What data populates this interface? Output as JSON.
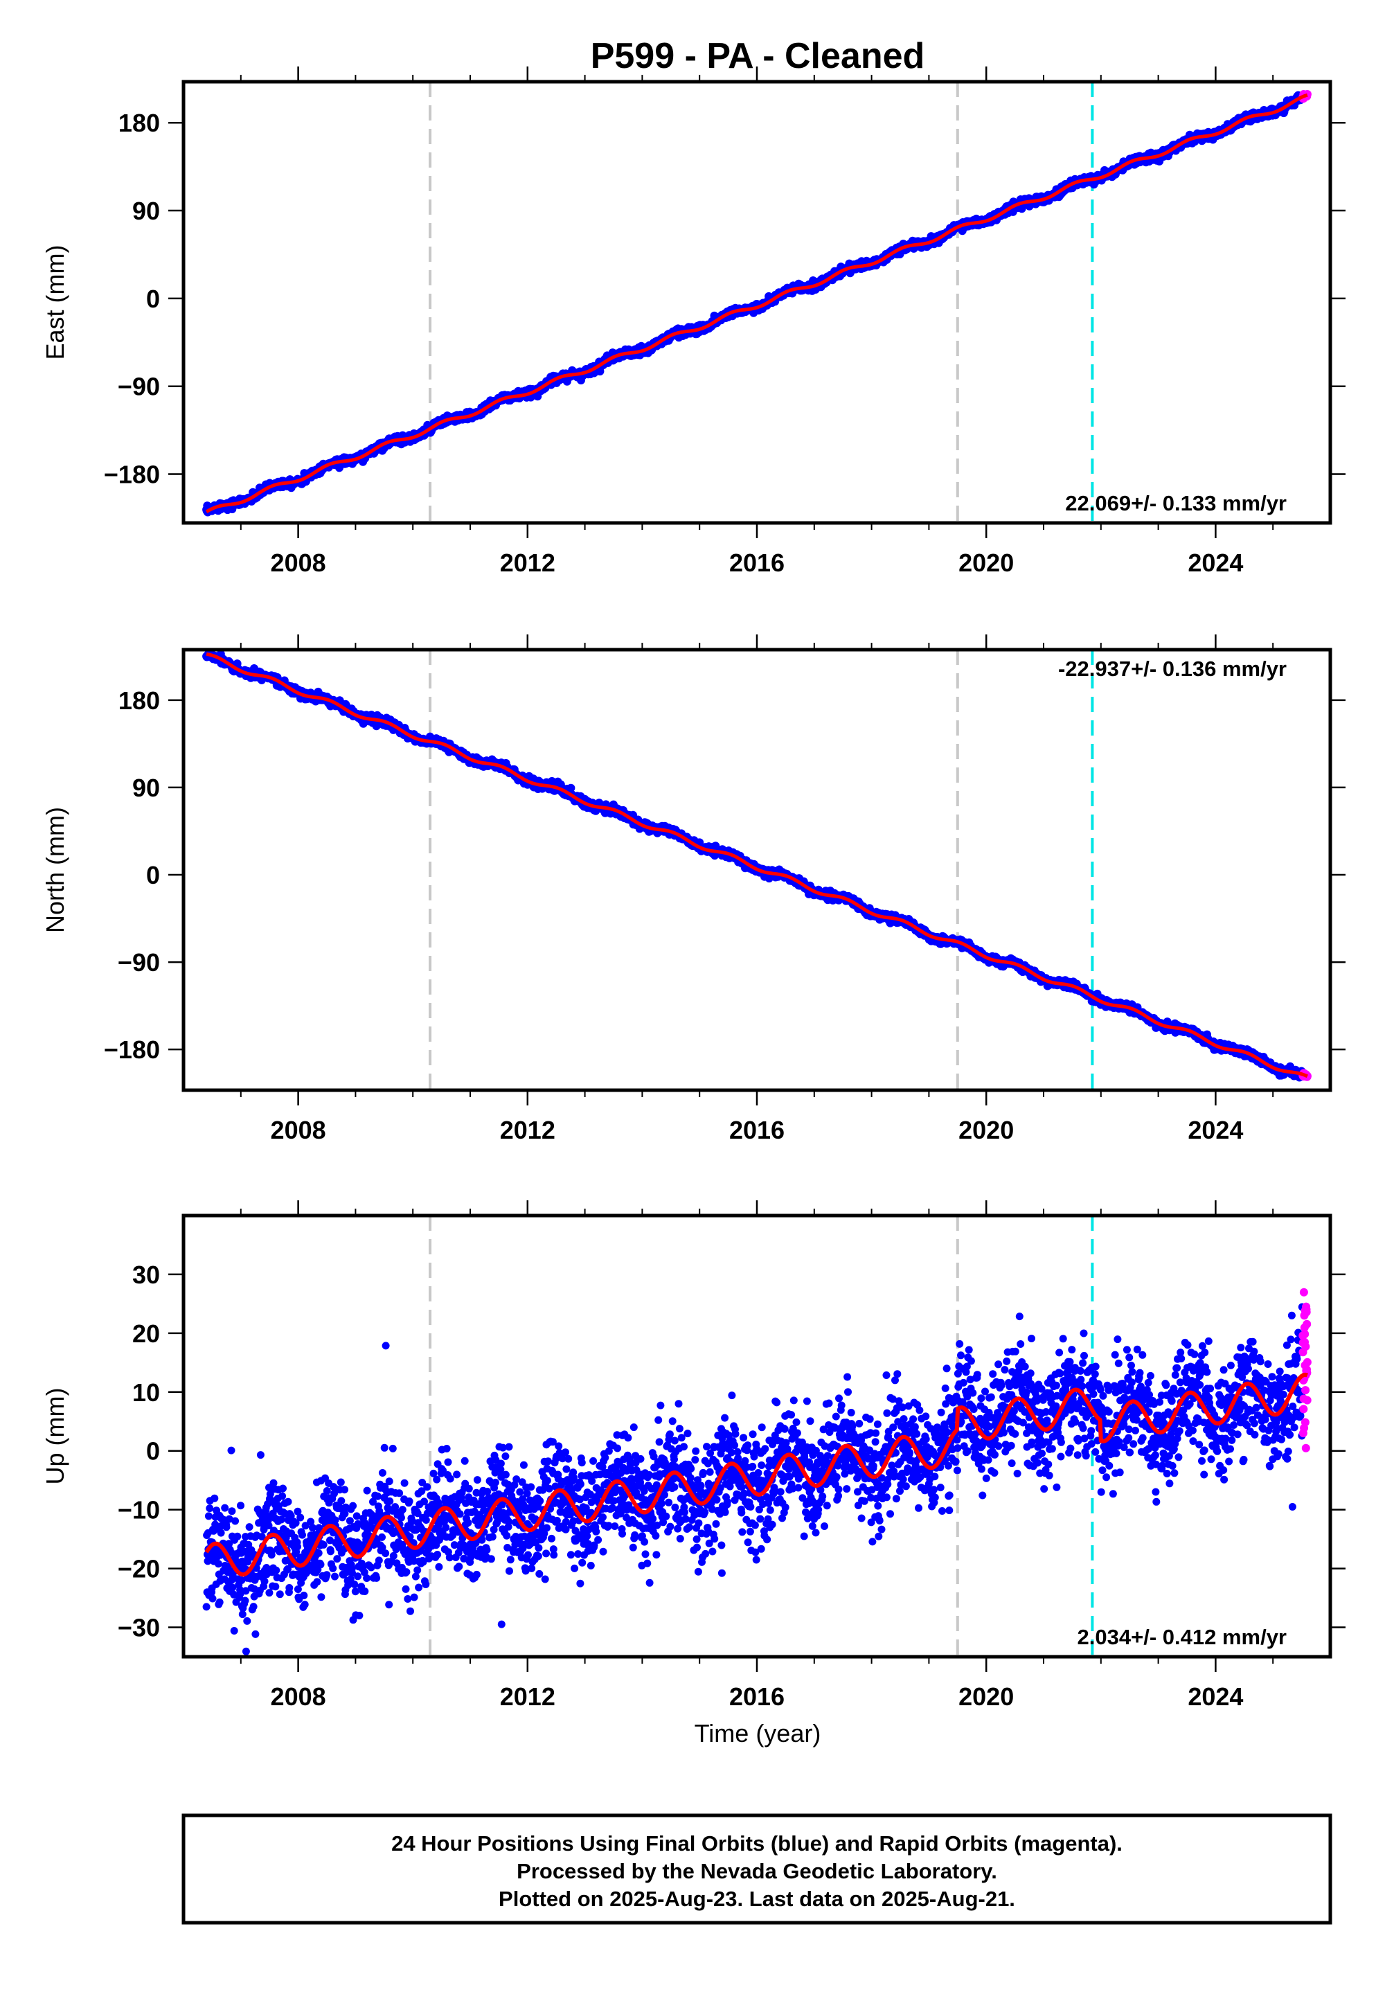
{
  "title": "P599  - PA - Cleaned",
  "colors": {
    "final_orbits": "#0000ff",
    "rapid_orbits": "#ff00ff",
    "model_fit": "#ff0000",
    "equipment_change": "#c8c8c8",
    "earthquake": "#00e5e5"
  },
  "xlabel": "Time (year)",
  "footer": {
    "line1": "24 Hour Positions Using Final Orbits (blue) and Rapid Orbits (magenta).",
    "line2": "Processed by the Nevada Geodetic Laboratory.",
    "line3": "Plotted on 2025-Aug-23. Last data on 2025-Aug-21."
  },
  "chart_data": [
    {
      "type": "scatter",
      "ylabel": "East (mm)",
      "rate_label": "22.069+/- 0.133 mm/yr",
      "xlim": [
        2006.0,
        2026.0
      ],
      "ylim": [
        -230,
        222
      ],
      "xticks": [
        2008,
        2012,
        2016,
        2020,
        2024
      ],
      "yticks": [
        -180,
        -90,
        0,
        90,
        180
      ],
      "start": {
        "x": 2006.4,
        "y": -220
      },
      "end": {
        "x": 2025.6,
        "y": 206
      },
      "rate_mm_per_yr": 22.069,
      "rate_error": 0.133,
      "seasonal_amp": 2.5,
      "scatter": 2.0,
      "equipment_changes": [
        2010.3,
        2019.5
      ],
      "earthquakes": [
        2021.85
      ]
    },
    {
      "type": "scatter",
      "ylabel": "North (mm)",
      "rate_label": "-22.937+/- 0.136 mm/yr",
      "xlim": [
        2006.0,
        2026.0
      ],
      "ylim": [
        -222,
        232
      ],
      "xticks": [
        2008,
        2012,
        2016,
        2020,
        2024
      ],
      "yticks": [
        -180,
        -90,
        0,
        90,
        180
      ],
      "start": {
        "x": 2006.4,
        "y": 226
      },
      "end": {
        "x": 2025.6,
        "y": -210
      },
      "rate_mm_per_yr": -22.937,
      "rate_error": 0.136,
      "seasonal_amp": 2.5,
      "scatter": 2.0,
      "equipment_changes": [
        2010.3,
        2019.5
      ],
      "earthquakes": [
        2021.85
      ]
    },
    {
      "type": "scatter",
      "ylabel": "Up (mm)",
      "rate_label": "2.034+/- 0.412 mm/yr",
      "xlim": [
        2006.0,
        2026.0
      ],
      "ylim": [
        -35,
        40
      ],
      "xticks": [
        2008,
        2012,
        2016,
        2020,
        2024
      ],
      "yticks": [
        -30,
        -20,
        -10,
        0,
        10,
        20,
        30
      ],
      "start": {
        "x": 2006.4,
        "y": -19
      },
      "end": {
        "x": 2025.6,
        "y": 10
      },
      "rate_mm_per_yr": 2.034,
      "rate_error": 0.412,
      "seasonal_amp": 3.0,
      "scatter": 4.5,
      "equipment_changes": [
        2010.3,
        2019.5
      ],
      "earthquakes": [
        2021.85
      ]
    }
  ]
}
